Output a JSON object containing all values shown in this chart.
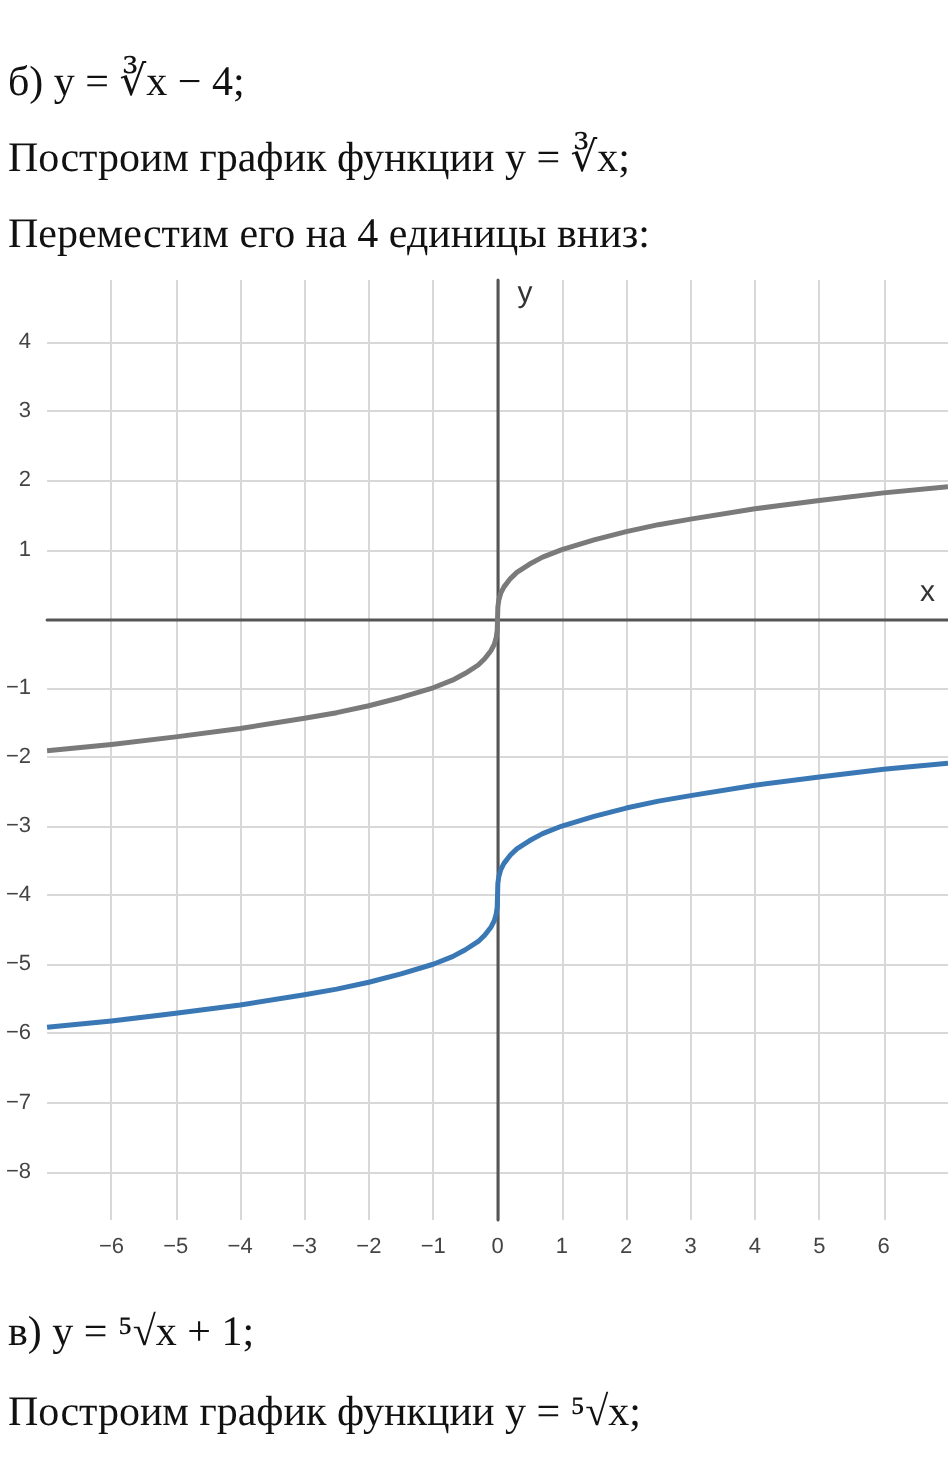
{
  "chart_data": {
    "type": "line",
    "annotations": [
      "б) y = ∛x − 4;",
      "Построим график функции y = ∛x;",
      "Переместим его на 4 единицы вниз:",
      "в) y = ⁵√x + 1;",
      "Построим график функции y = ⁵√x;"
    ],
    "xlabel": "x",
    "ylabel": "y",
    "x": [
      -7,
      -6,
      -5,
      -4,
      -3,
      -2.5,
      -2,
      -1.5,
      -1,
      -0.7,
      -0.5,
      -0.3,
      -0.2,
      -0.1,
      -0.05,
      -0.02,
      -0.005,
      0,
      0.005,
      0.02,
      0.05,
      0.1,
      0.2,
      0.3,
      0.5,
      0.7,
      1,
      1.5,
      2,
      2.5,
      3,
      4,
      5,
      6,
      7
    ],
    "series": [
      {
        "color": "#7a7a7a",
        "values": [
          -1.91,
          -1.82,
          -1.71,
          -1.59,
          -1.44,
          -1.36,
          -1.26,
          -1.14,
          -1,
          -0.89,
          -0.79,
          -0.67,
          -0.58,
          -0.46,
          -0.37,
          -0.27,
          -0.17,
          0,
          0.17,
          0.27,
          0.37,
          0.46,
          0.58,
          0.67,
          0.79,
          0.89,
          1,
          1.14,
          1.26,
          1.36,
          1.44,
          1.59,
          1.71,
          1.82,
          1.91
        ]
      },
      {
        "color": "#3a78b5",
        "values": [
          -5.91,
          -5.82,
          -5.71,
          -5.59,
          -5.44,
          -5.36,
          -5.26,
          -5.14,
          -5,
          -4.89,
          -4.79,
          -4.67,
          -4.58,
          -4.46,
          -4.37,
          -4.27,
          -4.17,
          -4,
          -3.83,
          -3.73,
          -3.63,
          -3.54,
          -3.42,
          -3.33,
          -3.21,
          -3.11,
          -3,
          -2.86,
          -2.74,
          -2.64,
          -2.56,
          -2.41,
          -2.29,
          -2.18,
          -2.09
        ]
      }
    ],
    "xlim": [
      -7,
      7
    ],
    "ylim": [
      -8.7,
      4.9
    ],
    "xticks": [
      -6,
      -5,
      -4,
      -3,
      -2,
      -1,
      0,
      1,
      2,
      3,
      4,
      5,
      6
    ],
    "yticks": [
      -8,
      -7,
      -6,
      -5,
      -4,
      -3,
      -2,
      -1,
      1,
      2,
      3,
      4
    ],
    "grid": true,
    "marker": "none",
    "line_style": "solid"
  }
}
